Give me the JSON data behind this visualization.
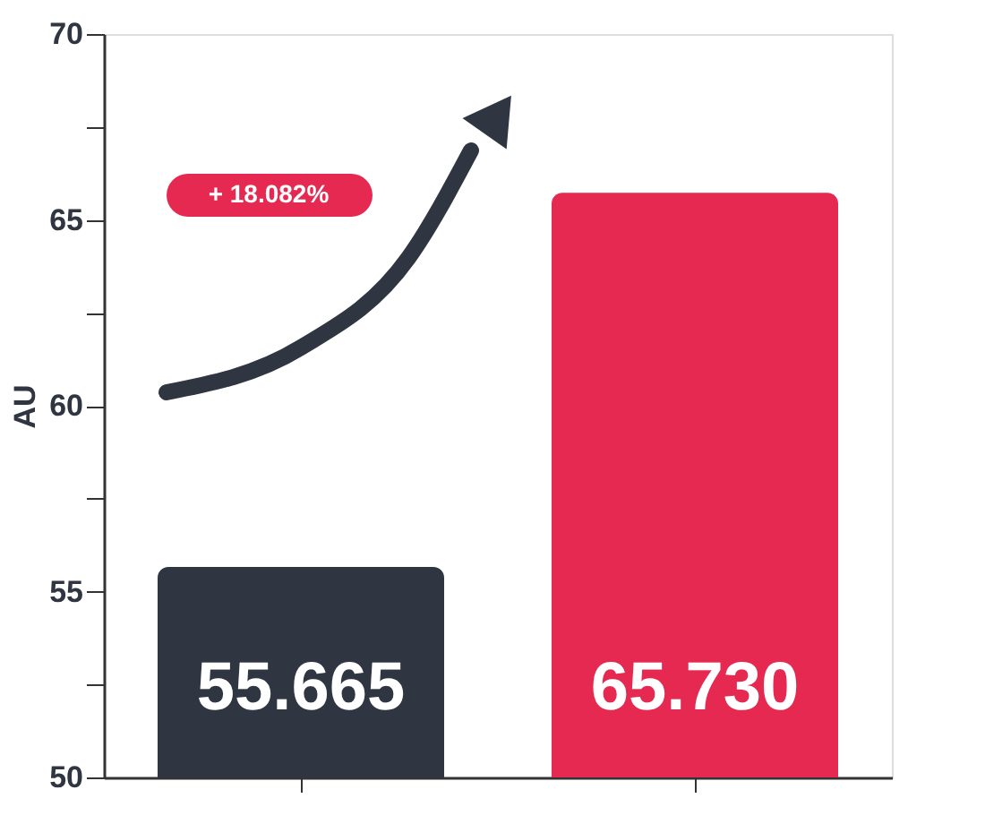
{
  "chart_data": {
    "type": "bar",
    "ylabel": "AU",
    "categories": [
      null,
      null
    ],
    "values": [
      55.665,
      65.73
    ],
    "colors": [
      "#2f3541",
      "#e52951"
    ],
    "value_labels": [
      "55.665",
      "65.730"
    ],
    "ylim": [
      50,
      70
    ],
    "yticks": [
      50,
      {
        "value": 52.5,
        "label": null
      },
      55,
      {
        "value": 57.5,
        "label": null
      },
      60,
      {
        "value": 62.5,
        "label": null
      },
      65,
      {
        "value": 67.5,
        "label": null
      },
      70
    ],
    "tick_labels": "y",
    "grid": false,
    "annotations": [
      "+ 18.082%"
    ]
  }
}
